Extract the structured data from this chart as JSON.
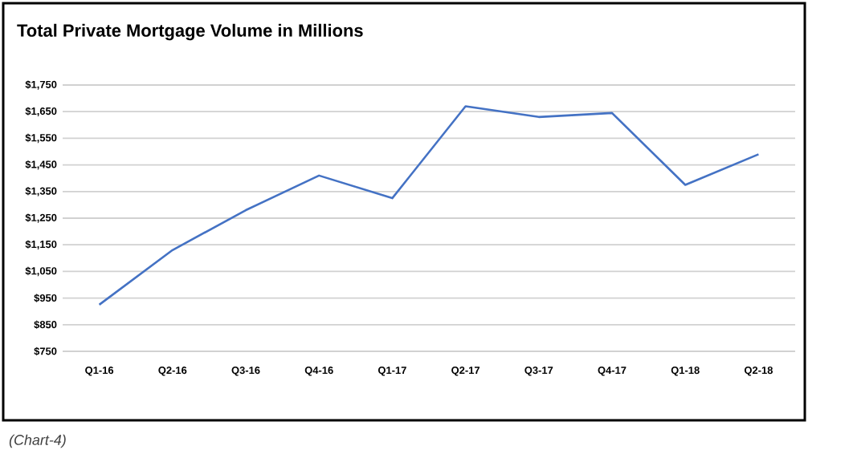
{
  "chart_data": {
    "type": "line",
    "title": "Total Private Mortgage Volume in Millions",
    "categories": [
      "Q1-16",
      "Q2-16",
      "Q3-16",
      "Q4-16",
      "Q1-17",
      "Q2-17",
      "Q3-17",
      "Q4-17",
      "Q1-18",
      "Q2-18"
    ],
    "series": [
      {
        "color": "#4472c4",
        "values": [
          925,
          1130,
          1280,
          1410,
          1325,
          1670,
          1630,
          1645,
          1375,
          1490
        ]
      }
    ],
    "ylim": [
      750,
      1750
    ],
    "yticks": [
      {
        "value": 750,
        "label": "$750"
      },
      {
        "value": 850,
        "label": "$850"
      },
      {
        "value": 950,
        "label": "$950"
      },
      {
        "value": 1050,
        "label": "$1,050"
      },
      {
        "value": 1150,
        "label": "$1,150"
      },
      {
        "value": 1250,
        "label": "$1,250"
      },
      {
        "value": 1350,
        "label": "$1,350"
      },
      {
        "value": 1450,
        "label": "$1,450"
      },
      {
        "value": 1550,
        "label": "$1,550"
      },
      {
        "value": 1650,
        "label": "$1,650"
      },
      {
        "value": 1750,
        "label": "$1,750"
      }
    ],
    "grid": "y",
    "annotations": [
      "(Chart-4)"
    ]
  }
}
